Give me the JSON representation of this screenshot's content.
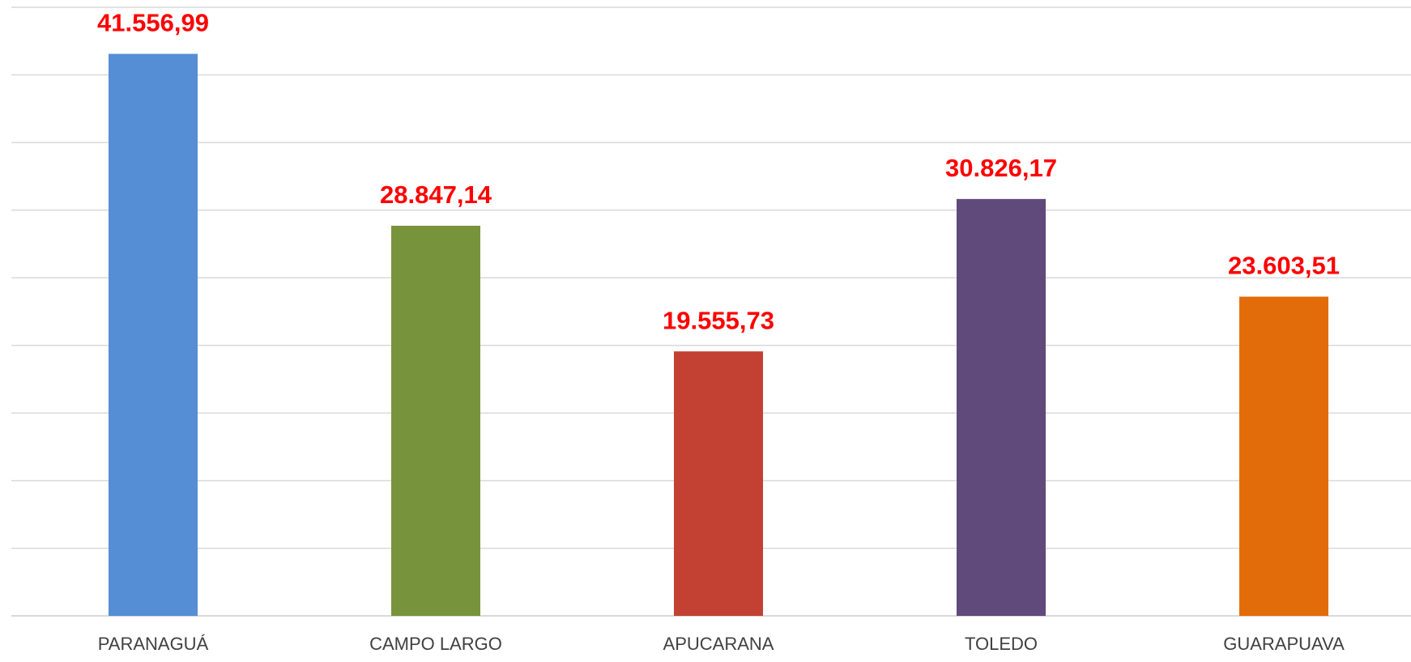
{
  "chart_data": {
    "type": "bar",
    "categories": [
      "PARANAGUÁ",
      "CAMPO LARGO",
      "APUCARANA",
      "TOLEDO",
      "GUARAPUAVA"
    ],
    "values": [
      41556.99,
      28847.14,
      19555.73,
      30826.17,
      23603.51
    ],
    "value_labels": [
      "41.556,99",
      "28.847,14",
      "19.555,73",
      "30.826,17",
      "23.603,51"
    ],
    "colors": [
      "#558ed5",
      "#77933c",
      "#c24133",
      "#604a7b",
      "#e36c0a"
    ],
    "ylim": [
      0,
      45000
    ],
    "yticks": [
      0,
      5000,
      10000,
      15000,
      20000,
      25000,
      30000,
      35000,
      40000,
      45000
    ],
    "grid": true
  }
}
